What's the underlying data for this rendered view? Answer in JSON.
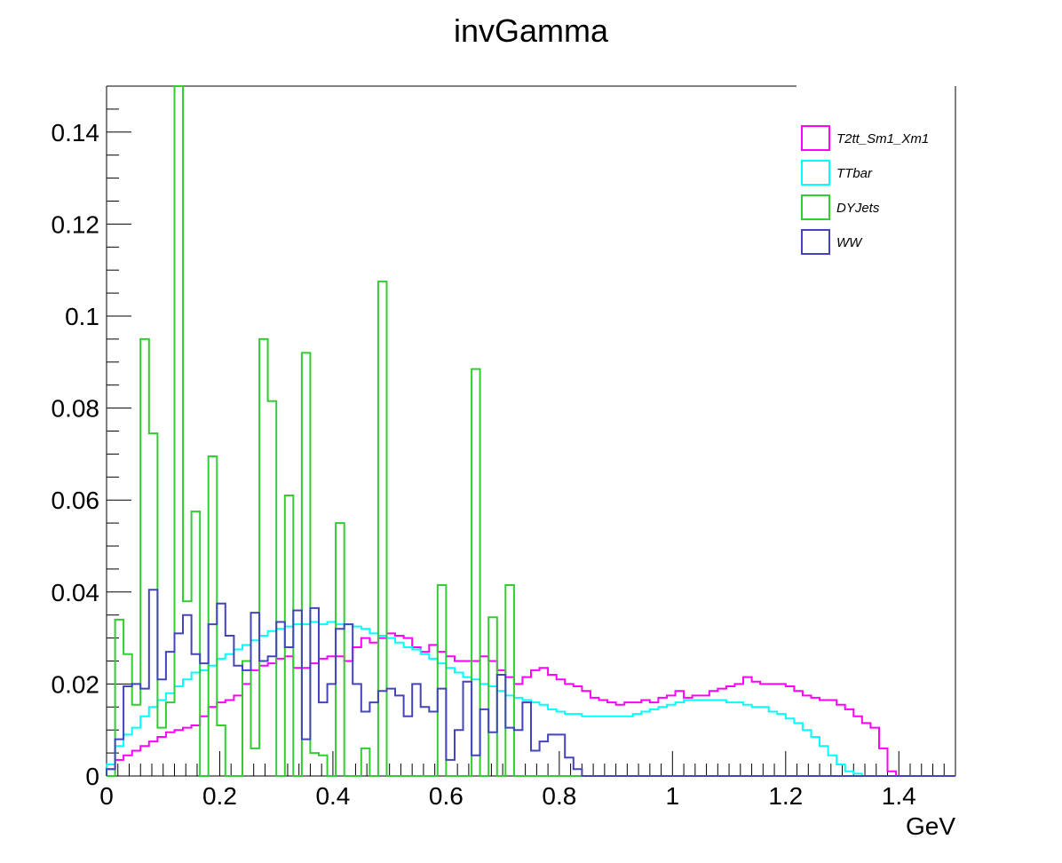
{
  "chart_data": {
    "type": "histogram-step",
    "title": "invGamma",
    "xlabel": "GeV",
    "ylabel": "",
    "xlim": [
      0,
      1.5
    ],
    "ylim": [
      0,
      0.15
    ],
    "bin_width": 0.015,
    "x_ticks": [
      "0",
      "0.2",
      "0.4",
      "0.6",
      "0.8",
      "1",
      "1.2",
      "1.4"
    ],
    "y_ticks": [
      "0",
      "0.02",
      "0.04",
      "0.06",
      "0.08",
      "0.1",
      "0.12",
      "0.14"
    ],
    "legend_position": "top-right",
    "series": [
      {
        "name": "T2tt_Sm1_Xm1",
        "color": "#ff00ff",
        "values": [
          0.0015,
          0.0035,
          0.0045,
          0.0055,
          0.0065,
          0.0075,
          0.0085,
          0.0095,
          0.01,
          0.0105,
          0.011,
          0.013,
          0.015,
          0.016,
          0.0165,
          0.0175,
          0.02,
          0.023,
          0.024,
          0.0245,
          0.0255,
          0.026,
          0.0235,
          0.0235,
          0.0245,
          0.0255,
          0.026,
          0.026,
          0.025,
          0.028,
          0.03,
          0.029,
          0.03,
          0.031,
          0.0305,
          0.03,
          0.028,
          0.027,
          0.0285,
          0.027,
          0.026,
          0.025,
          0.025,
          0.025,
          0.026,
          0.025,
          0.023,
          0.0215,
          0.02,
          0.0215,
          0.023,
          0.0235,
          0.022,
          0.021,
          0.02,
          0.0195,
          0.0185,
          0.017,
          0.0165,
          0.016,
          0.0155,
          0.016,
          0.016,
          0.0165,
          0.016,
          0.017,
          0.0175,
          0.0185,
          0.017,
          0.0175,
          0.0175,
          0.0185,
          0.019,
          0.0195,
          0.02,
          0.0215,
          0.0205,
          0.02,
          0.02,
          0.02,
          0.0195,
          0.0185,
          0.0175,
          0.017,
          0.0165,
          0.0165,
          0.0155,
          0.0145,
          0.013,
          0.0115,
          0.0105,
          0.006,
          0.001,
          0,
          0,
          0,
          0,
          0,
          0,
          0
        ]
      },
      {
        "name": "TTbar",
        "color": "#00ffff",
        "values": [
          0.0025,
          0.0065,
          0.009,
          0.0105,
          0.013,
          0.015,
          0.0165,
          0.018,
          0.0195,
          0.021,
          0.0225,
          0.023,
          0.024,
          0.0255,
          0.0265,
          0.0275,
          0.0285,
          0.0295,
          0.0305,
          0.0315,
          0.032,
          0.0325,
          0.033,
          0.033,
          0.0335,
          0.033,
          0.0335,
          0.033,
          0.033,
          0.0325,
          0.032,
          0.031,
          0.0305,
          0.03,
          0.029,
          0.028,
          0.0275,
          0.0265,
          0.0255,
          0.0245,
          0.0235,
          0.0225,
          0.0215,
          0.021,
          0.02,
          0.0195,
          0.0185,
          0.0175,
          0.017,
          0.0165,
          0.016,
          0.0155,
          0.0145,
          0.014,
          0.0135,
          0.0135,
          0.013,
          0.013,
          0.013,
          0.013,
          0.013,
          0.013,
          0.0135,
          0.014,
          0.0145,
          0.015,
          0.0155,
          0.016,
          0.0165,
          0.0165,
          0.0165,
          0.0165,
          0.0165,
          0.016,
          0.016,
          0.0155,
          0.015,
          0.015,
          0.014,
          0.0135,
          0.0125,
          0.0115,
          0.01,
          0.0085,
          0.0065,
          0.0045,
          0.0025,
          0.001,
          0.0005,
          0,
          0,
          0,
          0,
          0,
          0,
          0,
          0,
          0,
          0,
          0
        ]
      },
      {
        "name": "DYJets",
        "color": "#33cc33",
        "values": [
          0,
          0.034,
          0.0265,
          0.0155,
          0.095,
          0.0745,
          0.0105,
          0.016,
          0.15,
          0.038,
          0.0575,
          0,
          0.0695,
          0.011,
          0,
          0,
          0.025,
          0.006,
          0.095,
          0.0815,
          0,
          0.061,
          0,
          0.092,
          0.005,
          0.0045,
          0,
          0.055,
          0,
          0,
          0.006,
          0,
          0.1075,
          0,
          0,
          0,
          0,
          0,
          0,
          0.0415,
          0,
          0,
          0,
          0.0885,
          0,
          0.0345,
          0,
          0.0415,
          0,
          0,
          0,
          0,
          0,
          0,
          0,
          0,
          0,
          0,
          0,
          0,
          0,
          0,
          0,
          0,
          0,
          0,
          0,
          0,
          0,
          0,
          0,
          0,
          0,
          0,
          0,
          0,
          0,
          0,
          0,
          0,
          0,
          0,
          0,
          0,
          0,
          0,
          0,
          0,
          0,
          0,
          0,
          0,
          0,
          0,
          0,
          0,
          0,
          0,
          0,
          0
        ]
      },
      {
        "name": "WW",
        "color": "#4444bb",
        "values": [
          0.0015,
          0.008,
          0.0195,
          0.02,
          0.019,
          0.0405,
          0.021,
          0.027,
          0.031,
          0.035,
          0.0265,
          0.0245,
          0.033,
          0.0375,
          0.0305,
          0.024,
          0.023,
          0.0355,
          0.025,
          0.026,
          0.0335,
          0.028,
          0.036,
          0.008,
          0.0365,
          0.016,
          0.02,
          0.032,
          0.033,
          0.02,
          0.014,
          0.016,
          0.0185,
          0.019,
          0.0175,
          0.013,
          0.02,
          0.015,
          0.014,
          0.019,
          0.0035,
          0.01,
          0.0205,
          0.0045,
          0.0145,
          0.0095,
          0.022,
          0.0105,
          0.01,
          0.016,
          0.0055,
          0.0075,
          0.009,
          0.009,
          0.004,
          0.0015,
          0,
          0,
          0,
          0,
          0,
          0,
          0,
          0,
          0,
          0,
          0,
          0,
          0,
          0,
          0,
          0,
          0,
          0,
          0,
          0,
          0,
          0,
          0,
          0,
          0,
          0,
          0,
          0,
          0,
          0,
          0,
          0,
          0,
          0,
          0,
          0,
          0,
          0,
          0,
          0,
          0,
          0,
          0,
          0
        ]
      }
    ]
  }
}
